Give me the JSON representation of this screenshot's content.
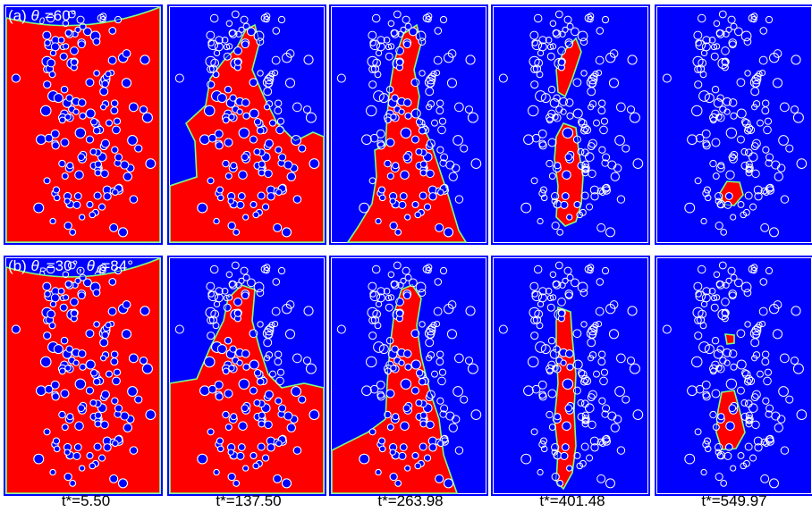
{
  "rows": [
    {
      "label_prefix": "(a)",
      "label_parts": [
        {
          "sym": "θ",
          "sub": "0",
          "text": "=60°"
        }
      ]
    },
    {
      "label_prefix": "(b)",
      "label_parts": [
        {
          "sym": "θ",
          "sub": "R",
          "text": "=30°,"
        },
        {
          "sym": "θ",
          "sub": "A",
          "text": "=84°"
        }
      ]
    }
  ],
  "time_labels": [
    "t*=5.50",
    "t*=137.50",
    "t*=263.98",
    "t*=401.48",
    "t*=549.97"
  ],
  "colors": {
    "background_fluid": "#0000ff",
    "displaced_fluid": "#ff0000",
    "obstacle_outline": "#ffffff",
    "interface": "#7fff7f",
    "frame": "#0000ff"
  }
}
